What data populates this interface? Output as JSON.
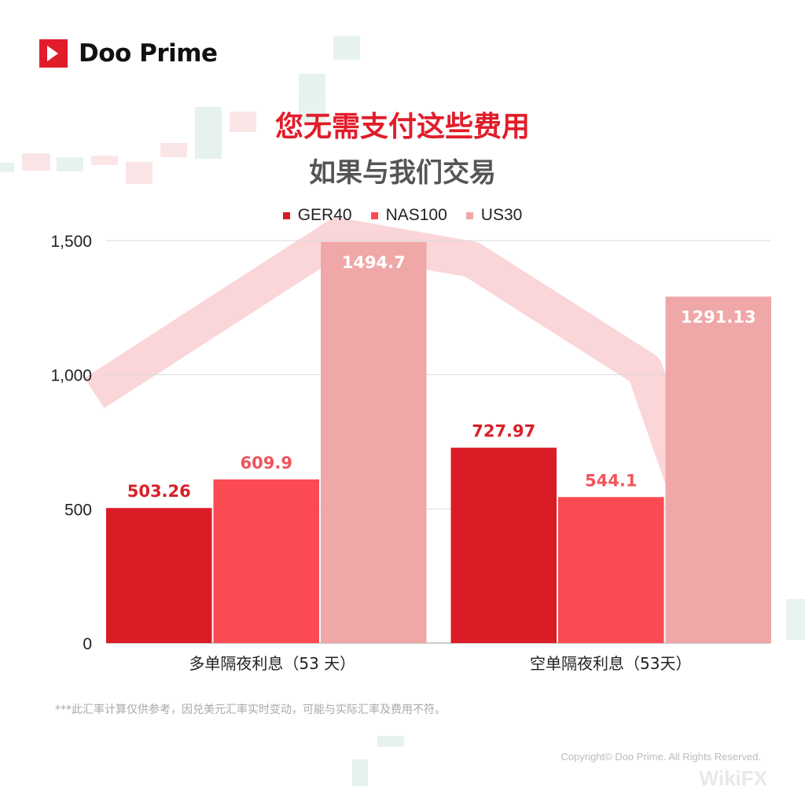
{
  "brand": {
    "name": "Doo Prime",
    "accent": "#e11d2a"
  },
  "header": {
    "title": "您无需支付这些费用",
    "subtitle": "如果与我们交易"
  },
  "chart_data": {
    "type": "bar",
    "categories": [
      "多单隔夜利息（53 天）",
      "空单隔夜利息（53天）"
    ],
    "series": [
      {
        "name": "GER40",
        "color": "#da1c26",
        "values": [
          503.26,
          727.97
        ],
        "labels": [
          "503.26",
          "727.97"
        ]
      },
      {
        "name": "NAS100",
        "color": "#fc4a52",
        "values": [
          609.9,
          544.1
        ],
        "labels": [
          "609.9",
          "544.1"
        ]
      },
      {
        "name": "US30",
        "color": "#f0a7a7",
        "values": [
          1494.7,
          1291.13
        ],
        "labels": [
          "1494.7",
          "1291.13"
        ]
      }
    ],
    "yticks": [
      0,
      500,
      1000,
      1500
    ],
    "ytick_labels": [
      "0",
      "500",
      "1,000",
      "1,500"
    ],
    "ylim": [
      0,
      1500
    ],
    "grid": true,
    "legend_position": "top-center"
  },
  "footer": {
    "note": "***此汇率计算仅供参考，因兑美元汇率实时变动，可能与实际汇率及费用不符。",
    "copyright": "Copyright© Doo Prime. All Rights Reserved.",
    "watermark": "WikiFX"
  }
}
